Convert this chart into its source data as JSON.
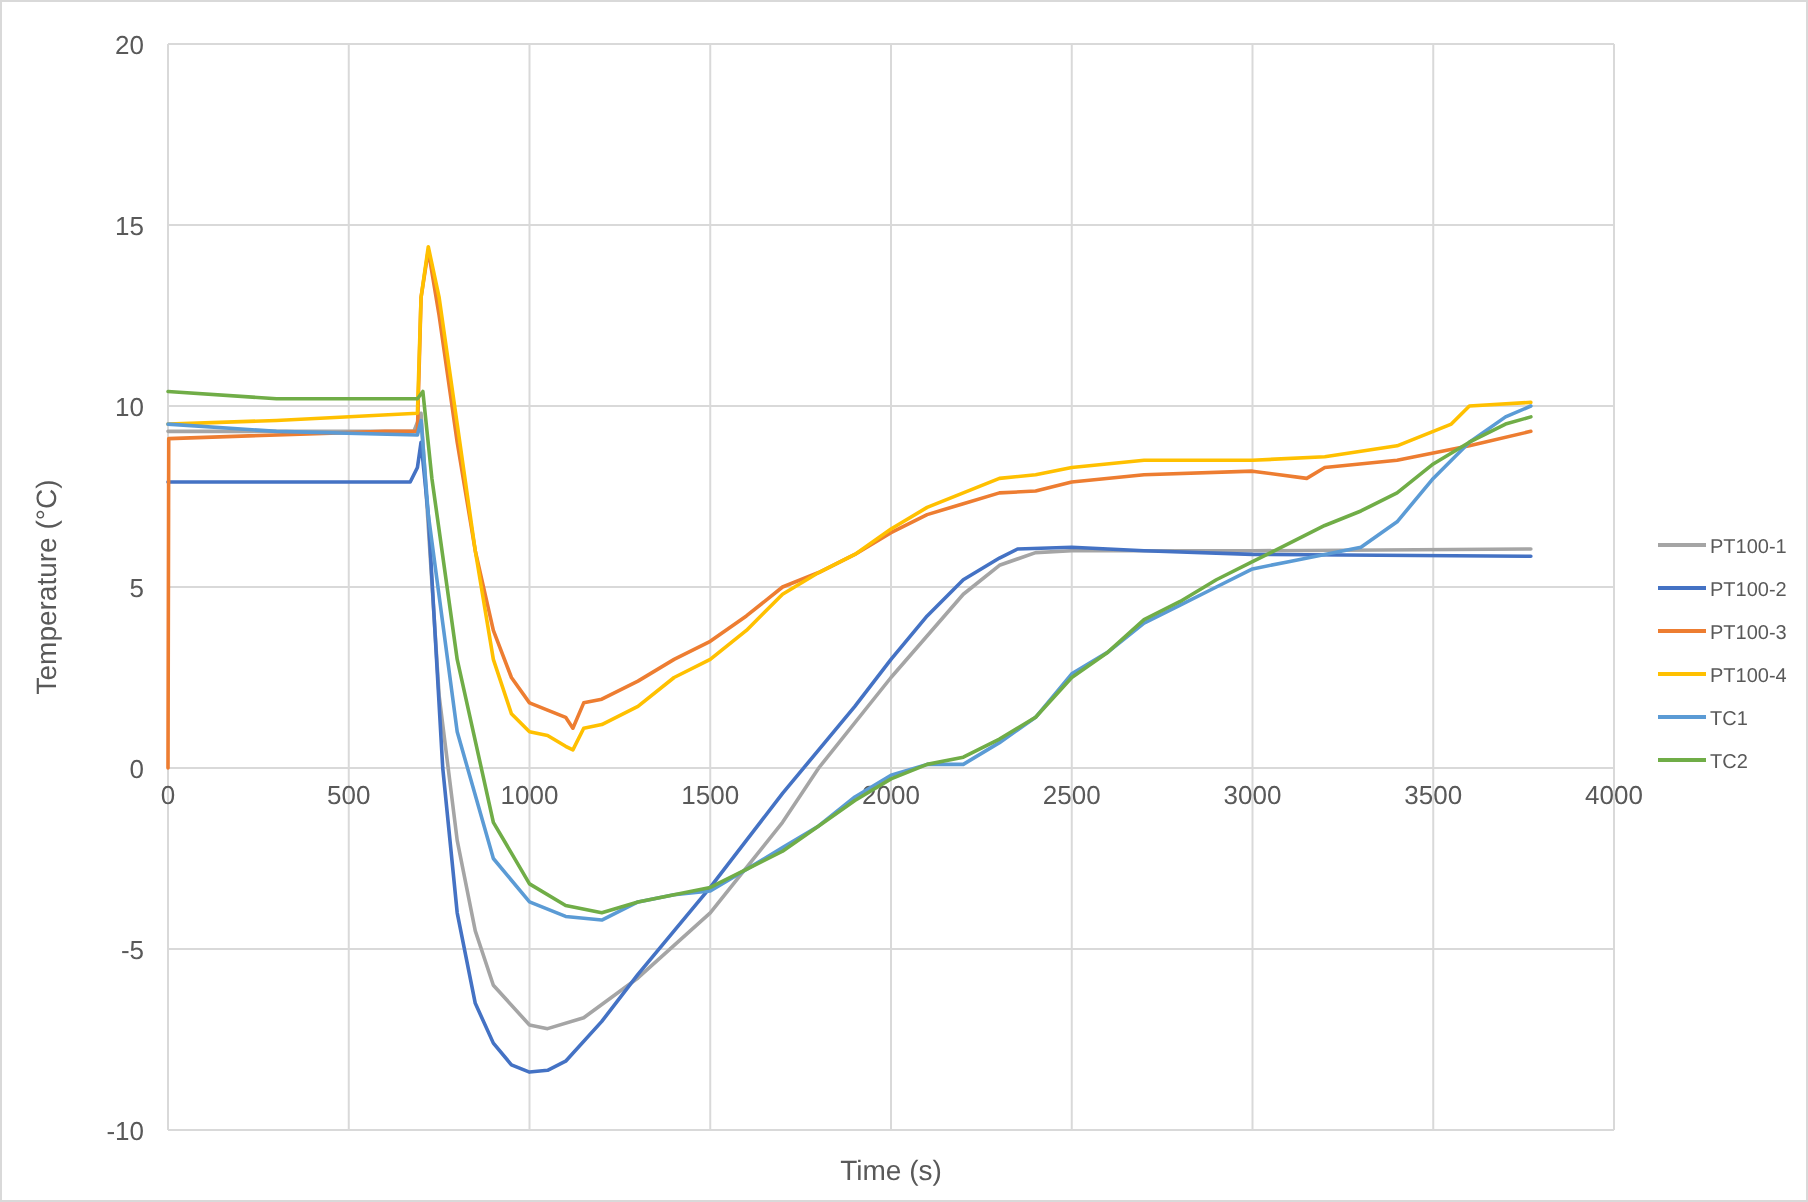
{
  "chart_data": {
    "type": "line",
    "xlabel": "Time (s)",
    "ylabel": "Temperature (°C)",
    "xlim": [
      0,
      4000
    ],
    "xticks": [
      0,
      500,
      1000,
      1500,
      2000,
      2500,
      3000,
      3500,
      4000
    ],
    "ylim": [
      -10,
      20
    ],
    "yticks": [
      -10,
      -5,
      0,
      5,
      10,
      15,
      20
    ],
    "grid": true,
    "legend": "right",
    "marker": "none",
    "line_style": "solid",
    "series": [
      {
        "name": "PT100-1",
        "color": "#a5a5a5",
        "x": [
          0,
          680,
          700,
          750,
          800,
          850,
          900,
          1000,
          1050,
          1150,
          1300,
          1500,
          1700,
          1800,
          2000,
          2200,
          2300,
          2400,
          2500,
          3000,
          3770
        ],
        "values": [
          9.3,
          9.3,
          9.8,
          2,
          -2,
          -4.5,
          -6,
          -7.1,
          -7.2,
          -6.9,
          -5.8,
          -4,
          -1.5,
          0,
          2.5,
          4.8,
          5.6,
          5.95,
          6.0,
          6.0,
          6.05
        ]
      },
      {
        "name": "PT100-2",
        "color": "#4472c4",
        "x": [
          0,
          670,
          690,
          700,
          720,
          760,
          800,
          850,
          900,
          950,
          1000,
          1050,
          1100,
          1200,
          1300,
          1400,
          1500,
          1600,
          1700,
          1800,
          1900,
          2000,
          2100,
          2200,
          2300,
          2350,
          2500,
          2700,
          3000,
          3770
        ],
        "values": [
          7.9,
          7.9,
          8.3,
          9.0,
          7,
          0,
          -4,
          -6.5,
          -7.6,
          -8.2,
          -8.4,
          -8.35,
          -8.1,
          -7,
          -5.7,
          -4.5,
          -3.3,
          -2,
          -0.7,
          0.5,
          1.7,
          3.0,
          4.2,
          5.2,
          5.8,
          6.05,
          6.1,
          6.0,
          5.9,
          5.85
        ]
      },
      {
        "name": "PT100-3",
        "color": "#ed7d31",
        "x": [
          0,
          2,
          600,
          690,
          700,
          720,
          750,
          800,
          850,
          900,
          950,
          1000,
          1050,
          1100,
          1120,
          1150,
          1200,
          1300,
          1400,
          1500,
          1600,
          1700,
          1800,
          1900,
          2000,
          2100,
          2200,
          2300,
          2400,
          2500,
          2700,
          3000,
          3150,
          3200,
          3400,
          3600,
          3770
        ],
        "values": [
          0,
          9.1,
          9.3,
          9.3,
          13,
          14.3,
          12.5,
          9,
          6,
          3.8,
          2.5,
          1.8,
          1.6,
          1.4,
          1.1,
          1.8,
          1.9,
          2.4,
          3.0,
          3.5,
          4.2,
          5.0,
          5.4,
          5.9,
          6.5,
          7.0,
          7.3,
          7.6,
          7.65,
          7.9,
          8.1,
          8.2,
          8.0,
          8.3,
          8.5,
          8.9,
          9.3
        ]
      },
      {
        "name": "PT100-4",
        "color": "#ffc000",
        "x": [
          0,
          300,
          690,
          700,
          720,
          750,
          800,
          850,
          900,
          950,
          1000,
          1050,
          1100,
          1120,
          1150,
          1200,
          1300,
          1400,
          1500,
          1600,
          1700,
          1800,
          1900,
          2000,
          2100,
          2200,
          2300,
          2400,
          2500,
          2700,
          3000,
          3200,
          3400,
          3550,
          3600,
          3770
        ],
        "values": [
          9.5,
          9.6,
          9.8,
          13,
          14.4,
          13,
          9.5,
          6,
          3,
          1.5,
          1.0,
          0.9,
          0.6,
          0.5,
          1.1,
          1.2,
          1.7,
          2.5,
          3.0,
          3.8,
          4.8,
          5.4,
          5.9,
          6.6,
          7.2,
          7.6,
          8.0,
          8.1,
          8.3,
          8.5,
          8.5,
          8.6,
          8.9,
          9.5,
          10.0,
          10.1
        ]
      },
      {
        "name": "TC1",
        "color": "#5b9bd5",
        "x": [
          0,
          300,
          690,
          700,
          720,
          800,
          900,
          1000,
          1100,
          1200,
          1300,
          1400,
          1500,
          1600,
          1700,
          1800,
          1900,
          2000,
          2100,
          2200,
          2300,
          2400,
          2500,
          2600,
          2700,
          2800,
          2900,
          3000,
          3100,
          3200,
          3300,
          3400,
          3500,
          3600,
          3700,
          3770
        ],
        "values": [
          9.5,
          9.3,
          9.2,
          9.6,
          7,
          1,
          -2.5,
          -3.7,
          -4.1,
          -4.2,
          -3.7,
          -3.5,
          -3.4,
          -2.8,
          -2.2,
          -1.6,
          -0.8,
          -0.2,
          0.1,
          0.1,
          0.7,
          1.4,
          2.6,
          3.2,
          4.0,
          4.5,
          5.0,
          5.5,
          5.7,
          5.9,
          6.1,
          6.8,
          8.0,
          9.0,
          9.7,
          10.0
        ]
      },
      {
        "name": "TC2",
        "color": "#70ad47",
        "x": [
          0,
          300,
          690,
          705,
          730,
          800,
          900,
          1000,
          1100,
          1200,
          1300,
          1400,
          1500,
          1600,
          1700,
          1800,
          1900,
          2000,
          2100,
          2200,
          2300,
          2400,
          2500,
          2600,
          2700,
          2800,
          2900,
          3000,
          3100,
          3200,
          3300,
          3400,
          3500,
          3600,
          3700,
          3770
        ],
        "values": [
          10.4,
          10.2,
          10.2,
          10.4,
          8,
          3,
          -1.5,
          -3.2,
          -3.8,
          -4.0,
          -3.7,
          -3.5,
          -3.3,
          -2.8,
          -2.3,
          -1.6,
          -0.9,
          -0.3,
          0.1,
          0.3,
          0.8,
          1.4,
          2.5,
          3.2,
          4.1,
          4.6,
          5.2,
          5.7,
          6.2,
          6.7,
          7.1,
          7.6,
          8.4,
          9.0,
          9.5,
          9.7
        ]
      }
    ]
  }
}
